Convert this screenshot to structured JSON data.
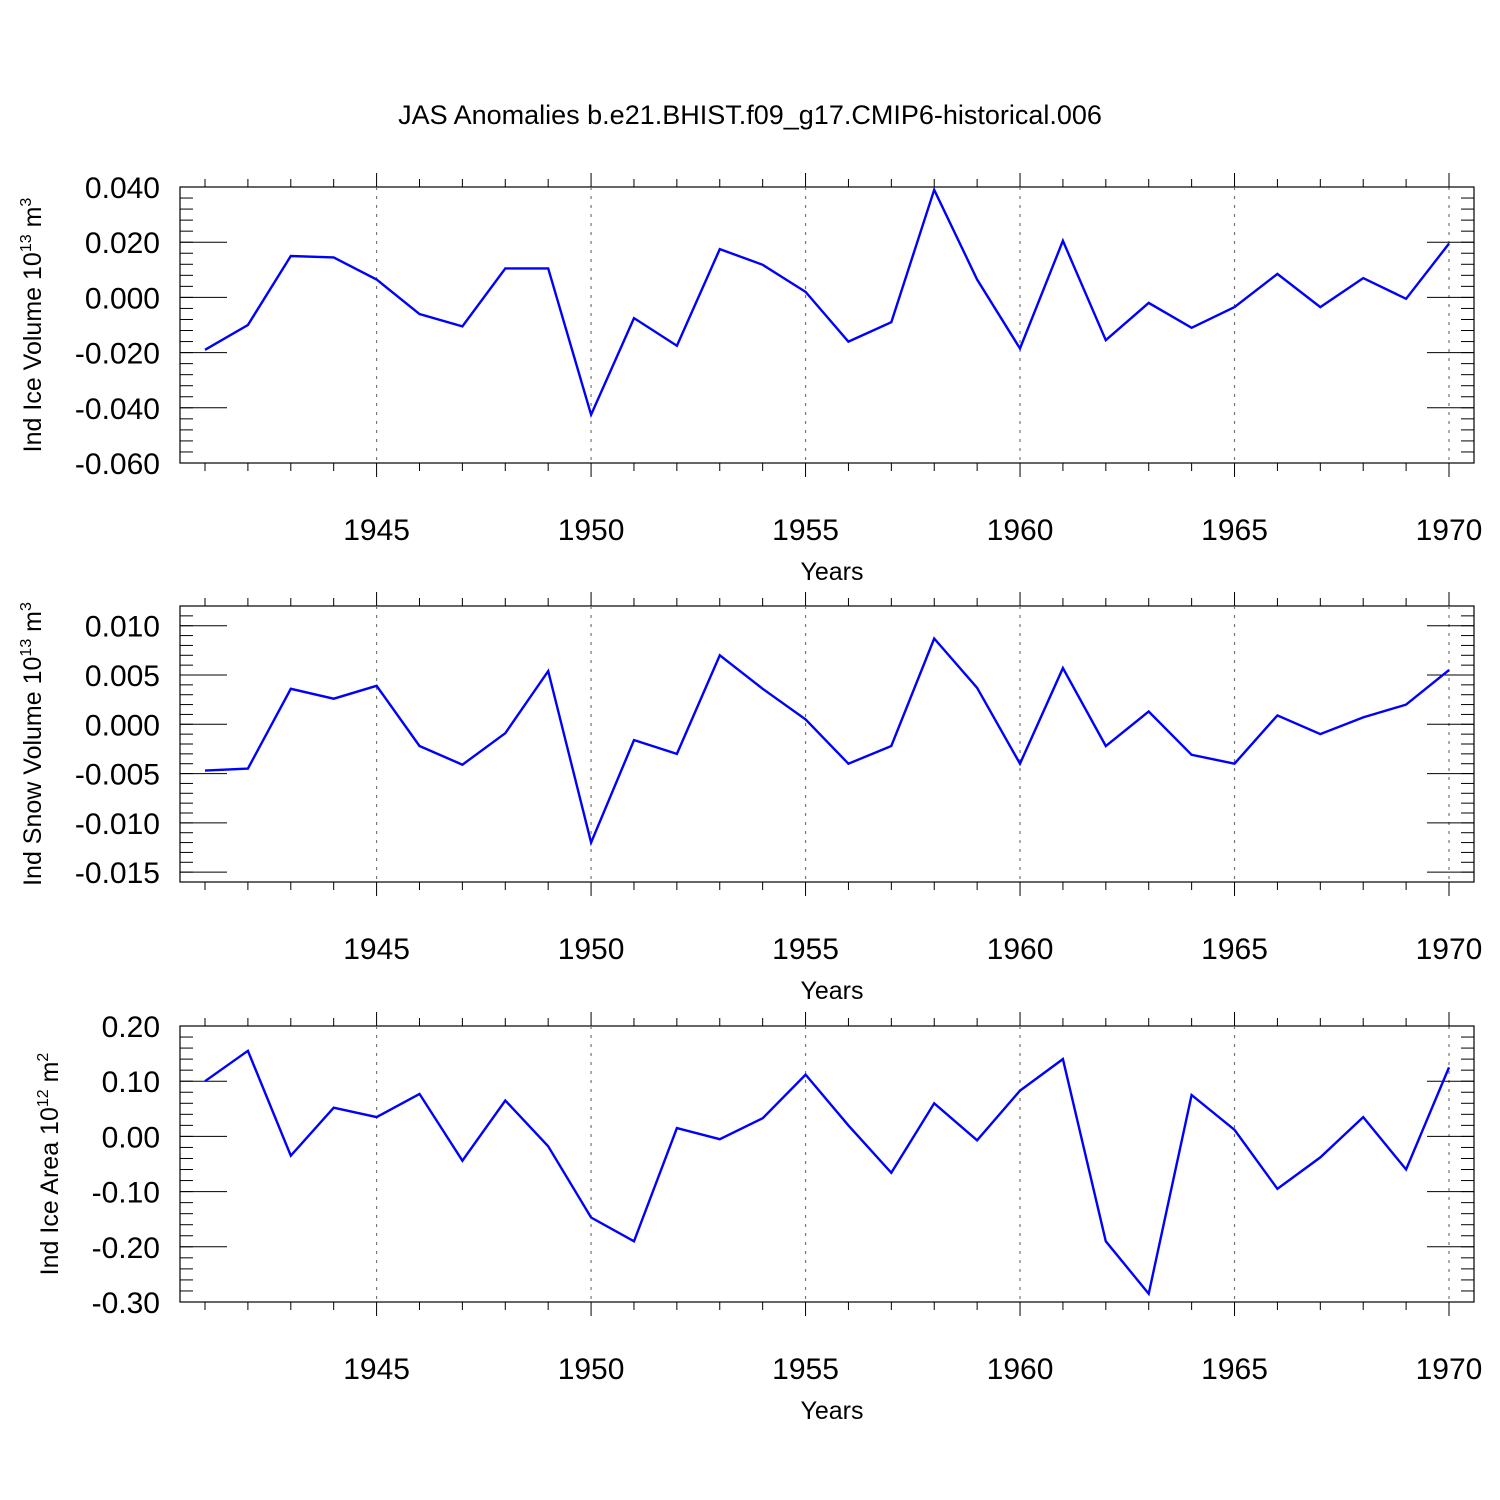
{
  "title": "JAS Anomalies b.e21.BHIST.f09_g17.CMIP6-historical.006",
  "chart_data": [
    {
      "type": "line",
      "ylabel": "Ind Ice Volume 10^13 m^3",
      "ylabel_parts": {
        "text": "Ind Ice Volume 10",
        "sup1": "13",
        "mid": " m",
        "sup2": "3"
      },
      "xlabel": "Years",
      "xlim": [
        1941,
        1970
      ],
      "ylim": [
        -0.06,
        0.04
      ],
      "yticks": [
        0.04,
        0.02,
        0.0,
        -0.02,
        -0.04,
        -0.06
      ],
      "ytick_labels": [
        "0.040",
        "0.020",
        "0.000",
        "-0.020",
        "-0.040",
        "-0.060"
      ],
      "xticks": [
        1945,
        1950,
        1955,
        1960,
        1965,
        1970
      ],
      "xtick_labels": [
        "1945",
        "1950",
        "1955",
        "1960",
        "1965",
        "1970"
      ],
      "grid": "vertical dashed at major x ticks",
      "color": "#0000ff",
      "x": [
        1941,
        1942,
        1943,
        1944,
        1945,
        1946,
        1947,
        1948,
        1949,
        1950,
        1951,
        1952,
        1953,
        1954,
        1955,
        1956,
        1957,
        1958,
        1959,
        1960,
        1961,
        1962,
        1963,
        1964,
        1965,
        1966,
        1967,
        1968,
        1969,
        1970
      ],
      "values": [
        -0.019,
        -0.01,
        0.015,
        0.0145,
        0.0065,
        -0.006,
        -0.0105,
        0.0105,
        0.0105,
        -0.0425,
        -0.0075,
        -0.0175,
        0.0175,
        0.0118,
        0.002,
        -0.016,
        -0.009,
        0.039,
        0.0065,
        -0.0185,
        0.0205,
        -0.0155,
        -0.002,
        -0.011,
        -0.0035,
        0.0085,
        -0.0035,
        0.007,
        -0.0005,
        0.0195
      ]
    },
    {
      "type": "line",
      "ylabel": "Ind Snow Volume 10^13 m^3",
      "ylabel_parts": {
        "text": "Ind Snow Volume 10",
        "sup1": "13",
        "mid": " m",
        "sup2": "3"
      },
      "xlabel": "Years",
      "xlim": [
        1941,
        1970
      ],
      "ylim": [
        -0.016,
        0.012
      ],
      "yticks": [
        0.01,
        0.005,
        0.0,
        -0.005,
        -0.01,
        -0.015
      ],
      "ytick_labels": [
        "0.010",
        "0.005",
        "0.000",
        "-0.005",
        "-0.010",
        "-0.015"
      ],
      "xticks": [
        1945,
        1950,
        1955,
        1960,
        1965,
        1970
      ],
      "xtick_labels": [
        "1945",
        "1950",
        "1955",
        "1960",
        "1965",
        "1970"
      ],
      "grid": "vertical dashed at major x ticks",
      "color": "#0000ff",
      "x": [
        1941,
        1942,
        1943,
        1944,
        1945,
        1946,
        1947,
        1948,
        1949,
        1950,
        1951,
        1952,
        1953,
        1954,
        1955,
        1956,
        1957,
        1958,
        1959,
        1960,
        1961,
        1962,
        1963,
        1964,
        1965,
        1966,
        1967,
        1968,
        1969,
        1970
      ],
      "values": [
        -0.0047,
        -0.0045,
        0.0036,
        0.0026,
        0.0039,
        -0.0022,
        -0.0041,
        -0.0009,
        0.0054,
        -0.012,
        -0.0016,
        -0.003,
        0.007,
        0.0036,
        0.0005,
        -0.004,
        -0.0022,
        0.0087,
        0.0037,
        -0.004,
        0.0057,
        -0.0022,
        0.0013,
        -0.0031,
        -0.004,
        0.0009,
        -0.001,
        0.0007,
        0.002,
        0.0055
      ]
    },
    {
      "type": "line",
      "ylabel": "Ind Ice Area 10^12 m^2",
      "ylabel_parts": {
        "text": "Ind Ice Area 10",
        "sup1": "12",
        "mid": " m",
        "sup2": "2"
      },
      "xlabel": "Years",
      "xlim": [
        1941,
        1970
      ],
      "ylim": [
        -0.3,
        0.2
      ],
      "yticks": [
        0.2,
        0.1,
        0.0,
        -0.1,
        -0.2,
        -0.3
      ],
      "ytick_labels": [
        "0.20",
        "0.10",
        "0.00",
        "-0.10",
        "-0.20",
        "-0.30"
      ],
      "xticks": [
        1945,
        1950,
        1955,
        1960,
        1965,
        1970
      ],
      "xtick_labels": [
        "1945",
        "1950",
        "1955",
        "1960",
        "1965",
        "1970"
      ],
      "grid": "vertical dashed at major x ticks",
      "color": "#0000ff",
      "x": [
        1941,
        1942,
        1943,
        1944,
        1945,
        1946,
        1947,
        1948,
        1949,
        1950,
        1951,
        1952,
        1953,
        1954,
        1955,
        1956,
        1957,
        1958,
        1959,
        1960,
        1961,
        1962,
        1963,
        1964,
        1965,
        1966,
        1967,
        1968,
        1969,
        1970
      ],
      "values": [
        0.1,
        0.155,
        -0.035,
        0.052,
        0.035,
        0.077,
        -0.044,
        0.065,
        -0.018,
        -0.147,
        -0.19,
        0.015,
        -0.005,
        0.033,
        0.112,
        0.02,
        -0.066,
        0.06,
        -0.007,
        0.083,
        0.14,
        -0.19,
        -0.285,
        0.075,
        0.012,
        -0.095,
        -0.038,
        0.035,
        -0.06,
        0.125
      ]
    }
  ]
}
